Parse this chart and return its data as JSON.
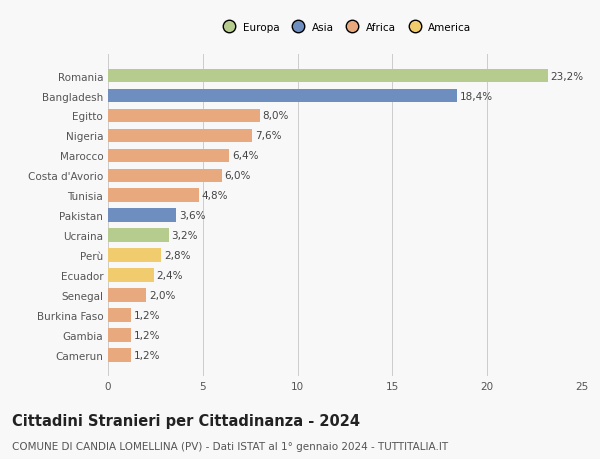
{
  "countries": [
    "Romania",
    "Bangladesh",
    "Egitto",
    "Nigeria",
    "Marocco",
    "Costa d'Avorio",
    "Tunisia",
    "Pakistan",
    "Ucraina",
    "Perù",
    "Ecuador",
    "Senegal",
    "Burkina Faso",
    "Gambia",
    "Camerun"
  ],
  "values": [
    23.2,
    18.4,
    8.0,
    7.6,
    6.4,
    6.0,
    4.8,
    3.6,
    3.2,
    2.8,
    2.4,
    2.0,
    1.2,
    1.2,
    1.2
  ],
  "colors": [
    "#b5cc8e",
    "#6e8ebf",
    "#e8a97e",
    "#e8a97e",
    "#e8a97e",
    "#e8a97e",
    "#e8a97e",
    "#6e8ebf",
    "#b5cc8e",
    "#f0cc6e",
    "#f0cc6e",
    "#e8a97e",
    "#e8a97e",
    "#e8a97e",
    "#e8a97e"
  ],
  "continents": [
    "Europa",
    "Asia",
    "Africa",
    "America"
  ],
  "legend_colors": [
    "#b5cc8e",
    "#6e8ebf",
    "#e8a97e",
    "#f0cc6e"
  ],
  "title": "Cittadini Stranieri per Cittadinanza - 2024",
  "subtitle": "COMUNE DI CANDIA LOMELLINA (PV) - Dati ISTAT al 1° gennaio 2024 - TUTTITALIA.IT",
  "xlim": [
    0,
    25
  ],
  "xticks": [
    0,
    5,
    10,
    15,
    20,
    25
  ],
  "background_color": "#f8f8f8",
  "grid_color": "#cccccc",
  "bar_height": 0.68,
  "label_fontsize": 7.5,
  "title_fontsize": 10.5,
  "subtitle_fontsize": 7.5,
  "tick_fontsize": 7.5
}
